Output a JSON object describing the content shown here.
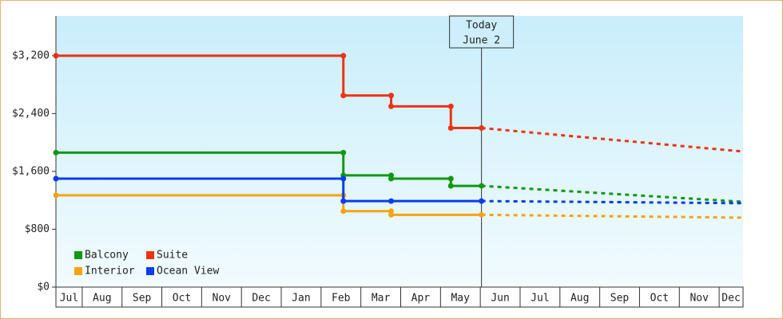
{
  "chart_data": {
    "type": "step-line",
    "categories": [
      "Jul",
      "Aug",
      "Sep",
      "Oct",
      "Nov",
      "Dec",
      "Jan",
      "Feb",
      "Mar",
      "Apr",
      "May",
      "Jun",
      "Jul",
      "Aug",
      "Sep",
      "Oct",
      "Nov",
      "Dec"
    ],
    "xlim": [
      0.34,
      17.6
    ],
    "ylim": [
      0,
      3750
    ],
    "yticks": [
      {
        "value": 0,
        "label": "$0"
      },
      {
        "value": 800,
        "label": "$800"
      },
      {
        "value": 1600,
        "label": "$1,600"
      },
      {
        "value": 2400,
        "label": "$2,400"
      },
      {
        "value": 3200,
        "label": "$3,200"
      }
    ],
    "annotation": {
      "x": 11.03,
      "lines": [
        "Today",
        "June 2"
      ]
    },
    "series": [
      {
        "name": "Balcony",
        "color": "#119911",
        "x": [
          0.34,
          7.56,
          7.56,
          8.76,
          8.76,
          10.26,
          10.26,
          11.03
        ],
        "values": [
          1860,
          1860,
          1545,
          1545,
          1500,
          1500,
          1400,
          1400
        ],
        "forecast": {
          "x": [
            11.03,
            17.6
          ],
          "values": [
            1400,
            1180
          ]
        }
      },
      {
        "name": "Suite",
        "color": "#ee3311",
        "x": [
          0.34,
          7.56,
          7.56,
          8.76,
          8.76,
          10.26,
          10.26,
          11.03
        ],
        "values": [
          3200,
          3200,
          2650,
          2650,
          2500,
          2500,
          2200,
          2200
        ],
        "forecast": {
          "x": [
            11.03,
            17.6
          ],
          "values": [
            2200,
            1875
          ]
        }
      },
      {
        "name": "Interior",
        "color": "#f5a311",
        "x": [
          0.34,
          7.56,
          7.56,
          8.76,
          8.76,
          11.03
        ],
        "values": [
          1270,
          1270,
          1050,
          1050,
          1000,
          1000
        ],
        "forecast": {
          "x": [
            11.03,
            17.6
          ],
          "values": [
            1000,
            960
          ]
        }
      },
      {
        "name": "Ocean View",
        "color": "#0a3cf0",
        "x": [
          0.34,
          7.56,
          7.56,
          8.76,
          11.03
        ],
        "values": [
          1500,
          1500,
          1190,
          1190,
          1190
        ],
        "forecast": {
          "x": [
            11.03,
            17.6
          ],
          "values": [
            1190,
            1160
          ]
        }
      }
    ]
  }
}
